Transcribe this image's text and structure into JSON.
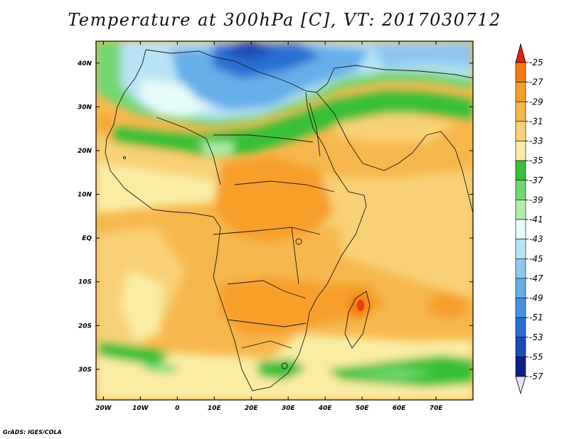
{
  "title": "Temperature at 300hPa [C], VT: 2017030712",
  "credit": "GrADS: IGES/COLA",
  "map": {
    "lon_range": [
      -22,
      80
    ],
    "lat_range": [
      -37,
      45
    ],
    "lon_ticks": [
      "20W",
      "10W",
      "0",
      "10E",
      "20E",
      "30E",
      "40E",
      "50E",
      "60E",
      "70E"
    ],
    "lat_ticks": [
      "40N",
      "30N",
      "20N",
      "10N",
      "EQ",
      "10S",
      "20S",
      "30S"
    ]
  },
  "colorbar": {
    "levels": [
      "-25",
      "-27",
      "-29",
      "-31",
      "-33",
      "-35",
      "-37",
      "-39",
      "-41",
      "-43",
      "-45",
      "-47",
      "-49",
      "-51",
      "-53",
      "-55",
      "-57"
    ],
    "colors": [
      "#e83c12",
      "#f57b0f",
      "#f89f2a",
      "#f6b84c",
      "#f8d176",
      "#fbeca4",
      "#39c039",
      "#72d772",
      "#aeedaa",
      "#e4fbf8",
      "#b8e3f7",
      "#8ec8ef",
      "#66aee8",
      "#4591e2",
      "#2a6ed4",
      "#1a4cb8",
      "#0c1f82"
    ],
    "top_arrow_color": "#e61e10",
    "bottom_arrow_color": "#e4e4f8"
  }
}
